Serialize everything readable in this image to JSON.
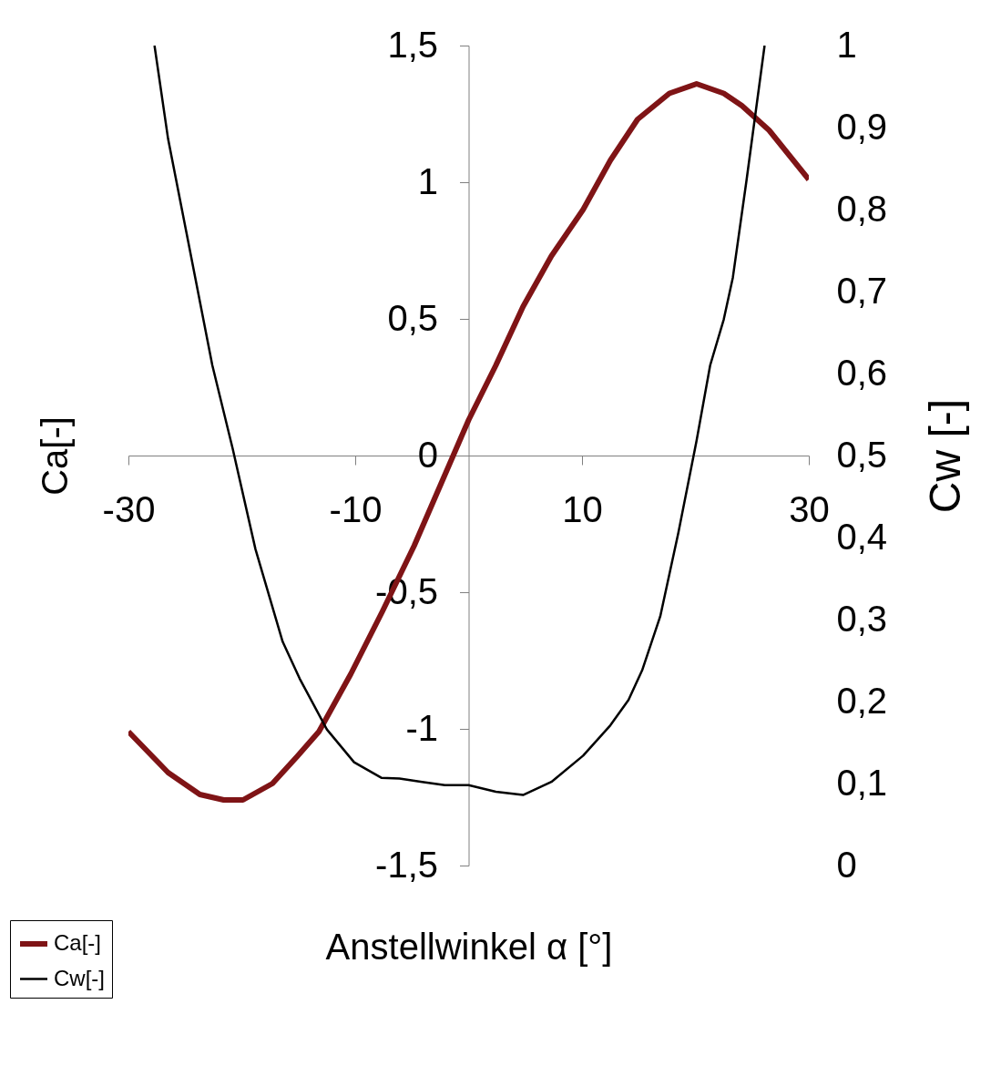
{
  "chart_data": {
    "type": "line",
    "xlabel": "Anstellwinkel  α [°]",
    "ylabel": "Ca[-]",
    "y2label": "Cw [-]",
    "xlim": [
      -30,
      30
    ],
    "xticks": [
      -30,
      -10,
      10,
      30
    ],
    "ylim": [
      -1.5,
      1.5
    ],
    "yticks": [
      {
        "value": -1.5,
        "label": "-1,5"
      },
      -1,
      {
        "value": -0.5,
        "label": "-0,5"
      },
      0,
      {
        "value": 0.5,
        "label": "0,5"
      },
      1,
      {
        "value": 1.5,
        "label": "1,5"
      }
    ],
    "y2lim": [
      0,
      1
    ],
    "y2ticks": [
      0,
      {
        "value": 0.1,
        "label": "0,1"
      },
      {
        "value": 0.2,
        "label": "0,2"
      },
      {
        "value": 0.3,
        "label": "0,3"
      },
      {
        "value": 0.4,
        "label": "0,4"
      },
      {
        "value": 0.5,
        "label": "0,5"
      },
      {
        "value": 0.6,
        "label": "0,6"
      },
      {
        "value": 0.7,
        "label": "0,7"
      },
      {
        "value": 0.8,
        "label": "0,8"
      },
      {
        "value": 0.9,
        "label": "0,9"
      },
      1
    ],
    "grid": false,
    "legend": "bottom left",
    "marker": "none",
    "line_style": "solid",
    "series": [
      {
        "name": "Ca[-]",
        "color": "#7f1416",
        "x": [
          -30,
          -26.5,
          -23.7,
          -21.6,
          -19.9,
          -17.3,
          -15.1,
          -13.2,
          -10.4,
          -7.6,
          -4.8,
          -2.4,
          0,
          2.4,
          4.8,
          7.3,
          10.1,
          12.5,
          14.9,
          17.7,
          20.1,
          22.5,
          24.1,
          26.5,
          30
        ],
        "values": [
          -1.01,
          -1.16,
          -1.24,
          -1.26,
          -1.26,
          -1.2,
          -1.1,
          -1.01,
          -0.8,
          -0.57,
          -0.33,
          -0.1,
          0.13,
          0.33,
          0.545,
          0.73,
          0.9,
          1.08,
          1.23,
          1.325,
          1.36,
          1.325,
          1.28,
          1.19,
          1.01
        ]
      },
      {
        "name": "Cw[-]",
        "color": "#000000",
        "axis": "y2",
        "x": [
          -27.7,
          -26.5,
          -24.9,
          -22.6,
          -20.8,
          -18.8,
          -16.4,
          -14.9,
          -12.5,
          -10.1,
          -7.7,
          -6.1,
          -4.1,
          -2.1,
          0,
          2.4,
          4.8,
          7.3,
          10.1,
          12.5,
          14.1,
          15.3,
          16.9,
          18.5,
          20.1,
          21.3,
          22.5,
          23.3,
          24.5,
          26.1
        ],
        "values": [
          1.0,
          0.886,
          0.773,
          0.61,
          0.508,
          0.386,
          0.273,
          0.228,
          0.166,
          0.126,
          0.107,
          0.106,
          0.102,
          0.098,
          0.098,
          0.09,
          0.086,
          0.102,
          0.134,
          0.171,
          0.202,
          0.238,
          0.304,
          0.406,
          0.518,
          0.61,
          0.666,
          0.717,
          0.835,
          1.0
        ]
      }
    ]
  }
}
